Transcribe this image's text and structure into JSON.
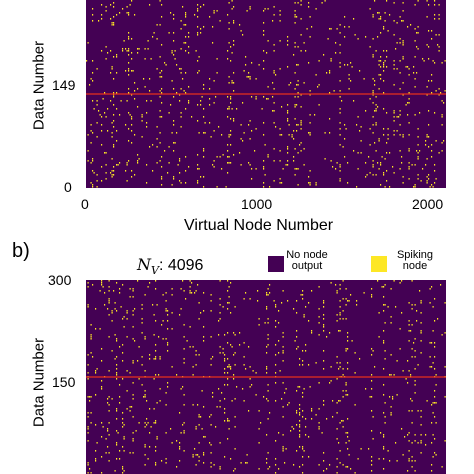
{
  "colors": {
    "no_output": "#440154",
    "spiking": "#fde725",
    "red_line": "#e8311a"
  },
  "chart_data": [
    {
      "type": "heatmap",
      "panel_label": "",
      "xlabel": "Virtual Node Number",
      "ylabel": "Data Number",
      "x_ticks": [
        "0",
        "1000",
        "2000"
      ],
      "x_tick_values": [
        0,
        1000,
        2000
      ],
      "xlim": [
        0,
        2048
      ],
      "y_ticks": [
        "0",
        "149"
      ],
      "y_tick_values": [
        0,
        149
      ],
      "ylim": [
        0,
        298
      ],
      "hline_value": 149,
      "virtual_nodes": 2048
    },
    {
      "type": "heatmap",
      "panel_label": "b)",
      "nv_symbol": "N",
      "nv_subscript": "V",
      "nv_value": ": 4096",
      "xlabel": "",
      "ylabel": "Data Number",
      "y_ticks": [
        "300",
        "150"
      ],
      "y_tick_values": [
        300,
        150
      ],
      "ylim": [
        0,
        300
      ],
      "hline_value": 150,
      "virtual_nodes": 4096,
      "legend": [
        {
          "label_line1": "No node",
          "label_line2": "output",
          "color": "#440154"
        },
        {
          "label_line1": "Spiking",
          "label_line2": "node",
          "color": "#fde725"
        }
      ]
    }
  ]
}
